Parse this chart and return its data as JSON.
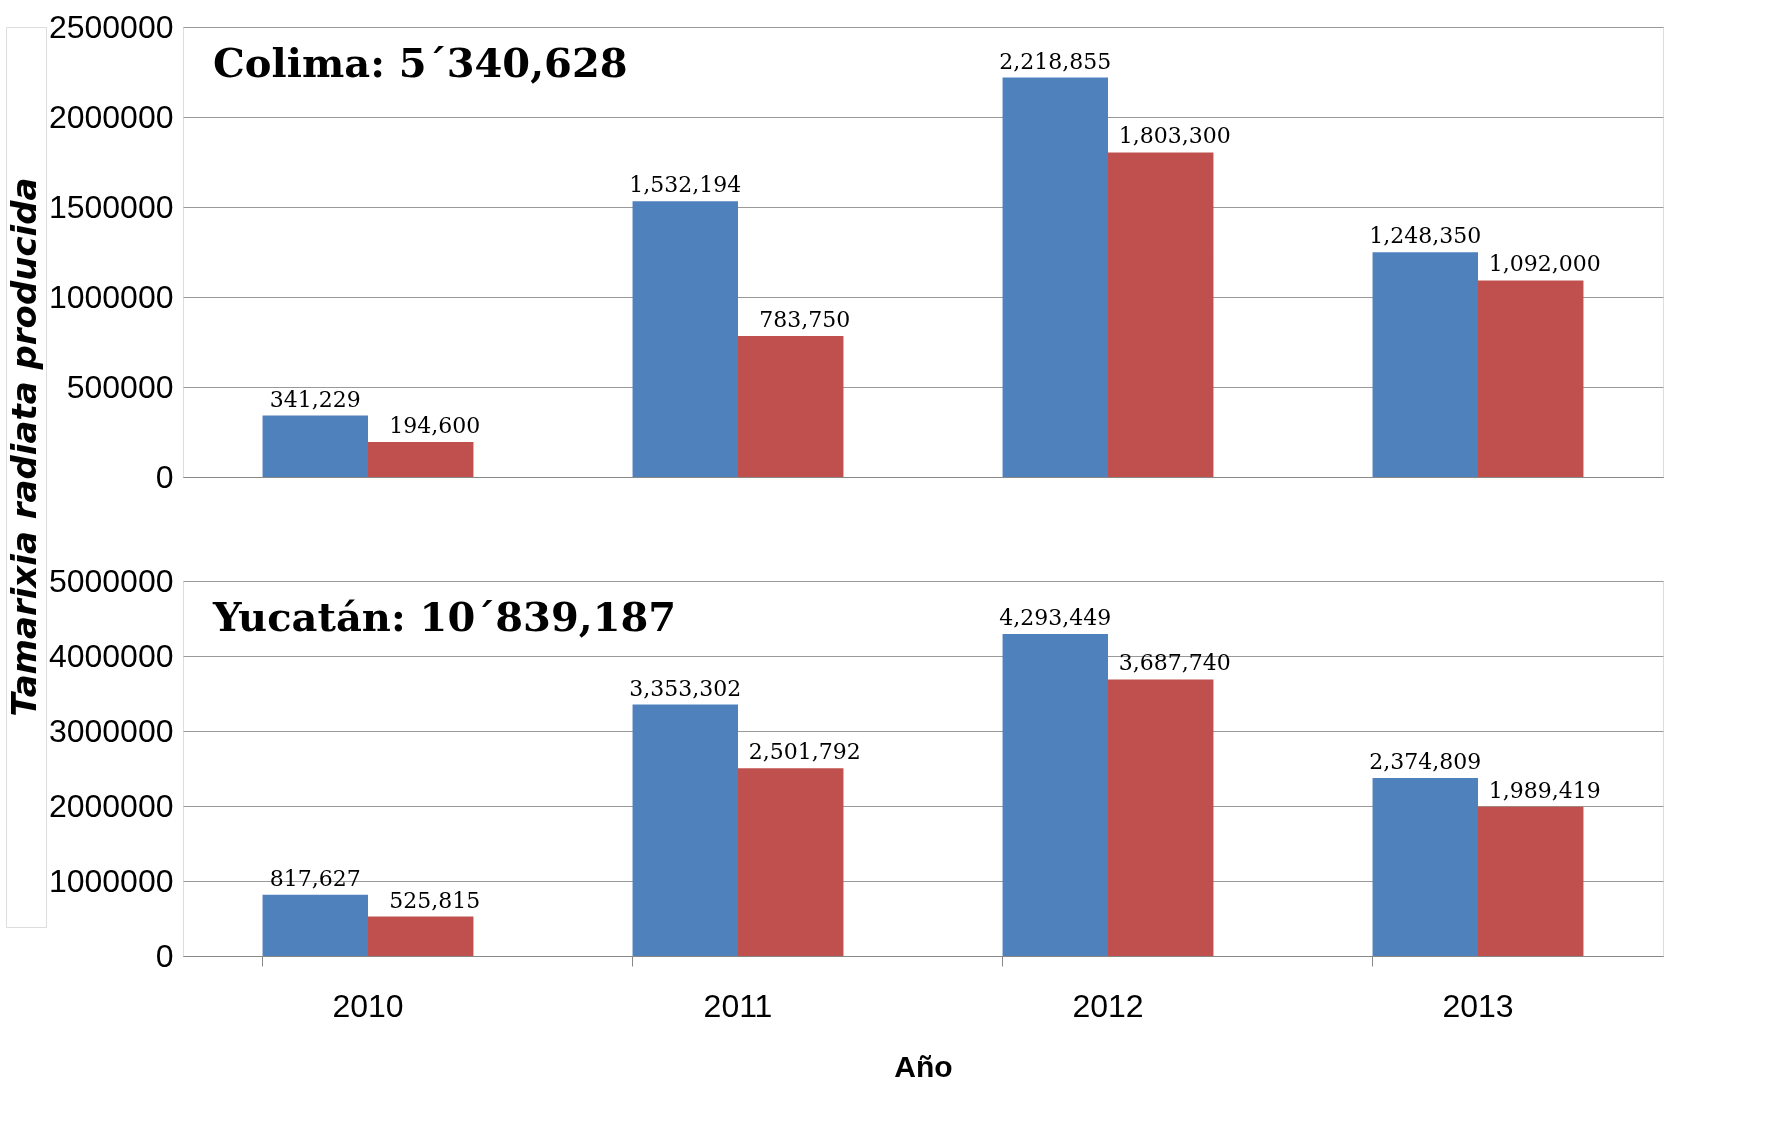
{
  "chart_data": [
    {
      "type": "bar",
      "title": "Colima: 5´340,628",
      "ylabel": "Tamarixia radiata producida",
      "categories": [
        "2010",
        "2011",
        "2012",
        "2013"
      ],
      "series": [
        {
          "color": "#4f81bd",
          "values": [
            341229,
            1532194,
            2218855,
            1248350
          ],
          "value_labels": [
            "341,229",
            "1,532,194",
            "2,218,855",
            "1,248,350"
          ]
        },
        {
          "color": "#c0504d",
          "values": [
            194600,
            783750,
            1803300,
            1092000
          ],
          "value_labels": [
            "194,600",
            "783,750",
            "1,803,300",
            "1,092,000"
          ]
        }
      ],
      "ylim": [
        0,
        2500000
      ],
      "yticks": [
        0,
        500000,
        1000000,
        1500000,
        2000000,
        2500000
      ],
      "grid": "y",
      "tick_labels": "y"
    },
    {
      "type": "bar",
      "title": "Yucatán: 10´839,187",
      "xlabel": "Año",
      "categories": [
        "2010",
        "2011",
        "2012",
        "2013"
      ],
      "series": [
        {
          "color": "#4f81bd",
          "values": [
            817627,
            3353302,
            4293449,
            2374809
          ],
          "value_labels": [
            "817,627",
            "3,353,302",
            "4,293,449",
            "2,374,809"
          ]
        },
        {
          "color": "#c0504d",
          "values": [
            525815,
            2501792,
            3687740,
            1989419
          ],
          "value_labels": [
            "525,815",
            "2,501,792",
            "3,687,740",
            "1,989,419"
          ]
        }
      ],
      "ylim": [
        0,
        5000000
      ],
      "yticks": [
        0,
        1000000,
        2000000,
        3000000,
        4000000,
        5000000
      ],
      "grid": "y"
    }
  ]
}
